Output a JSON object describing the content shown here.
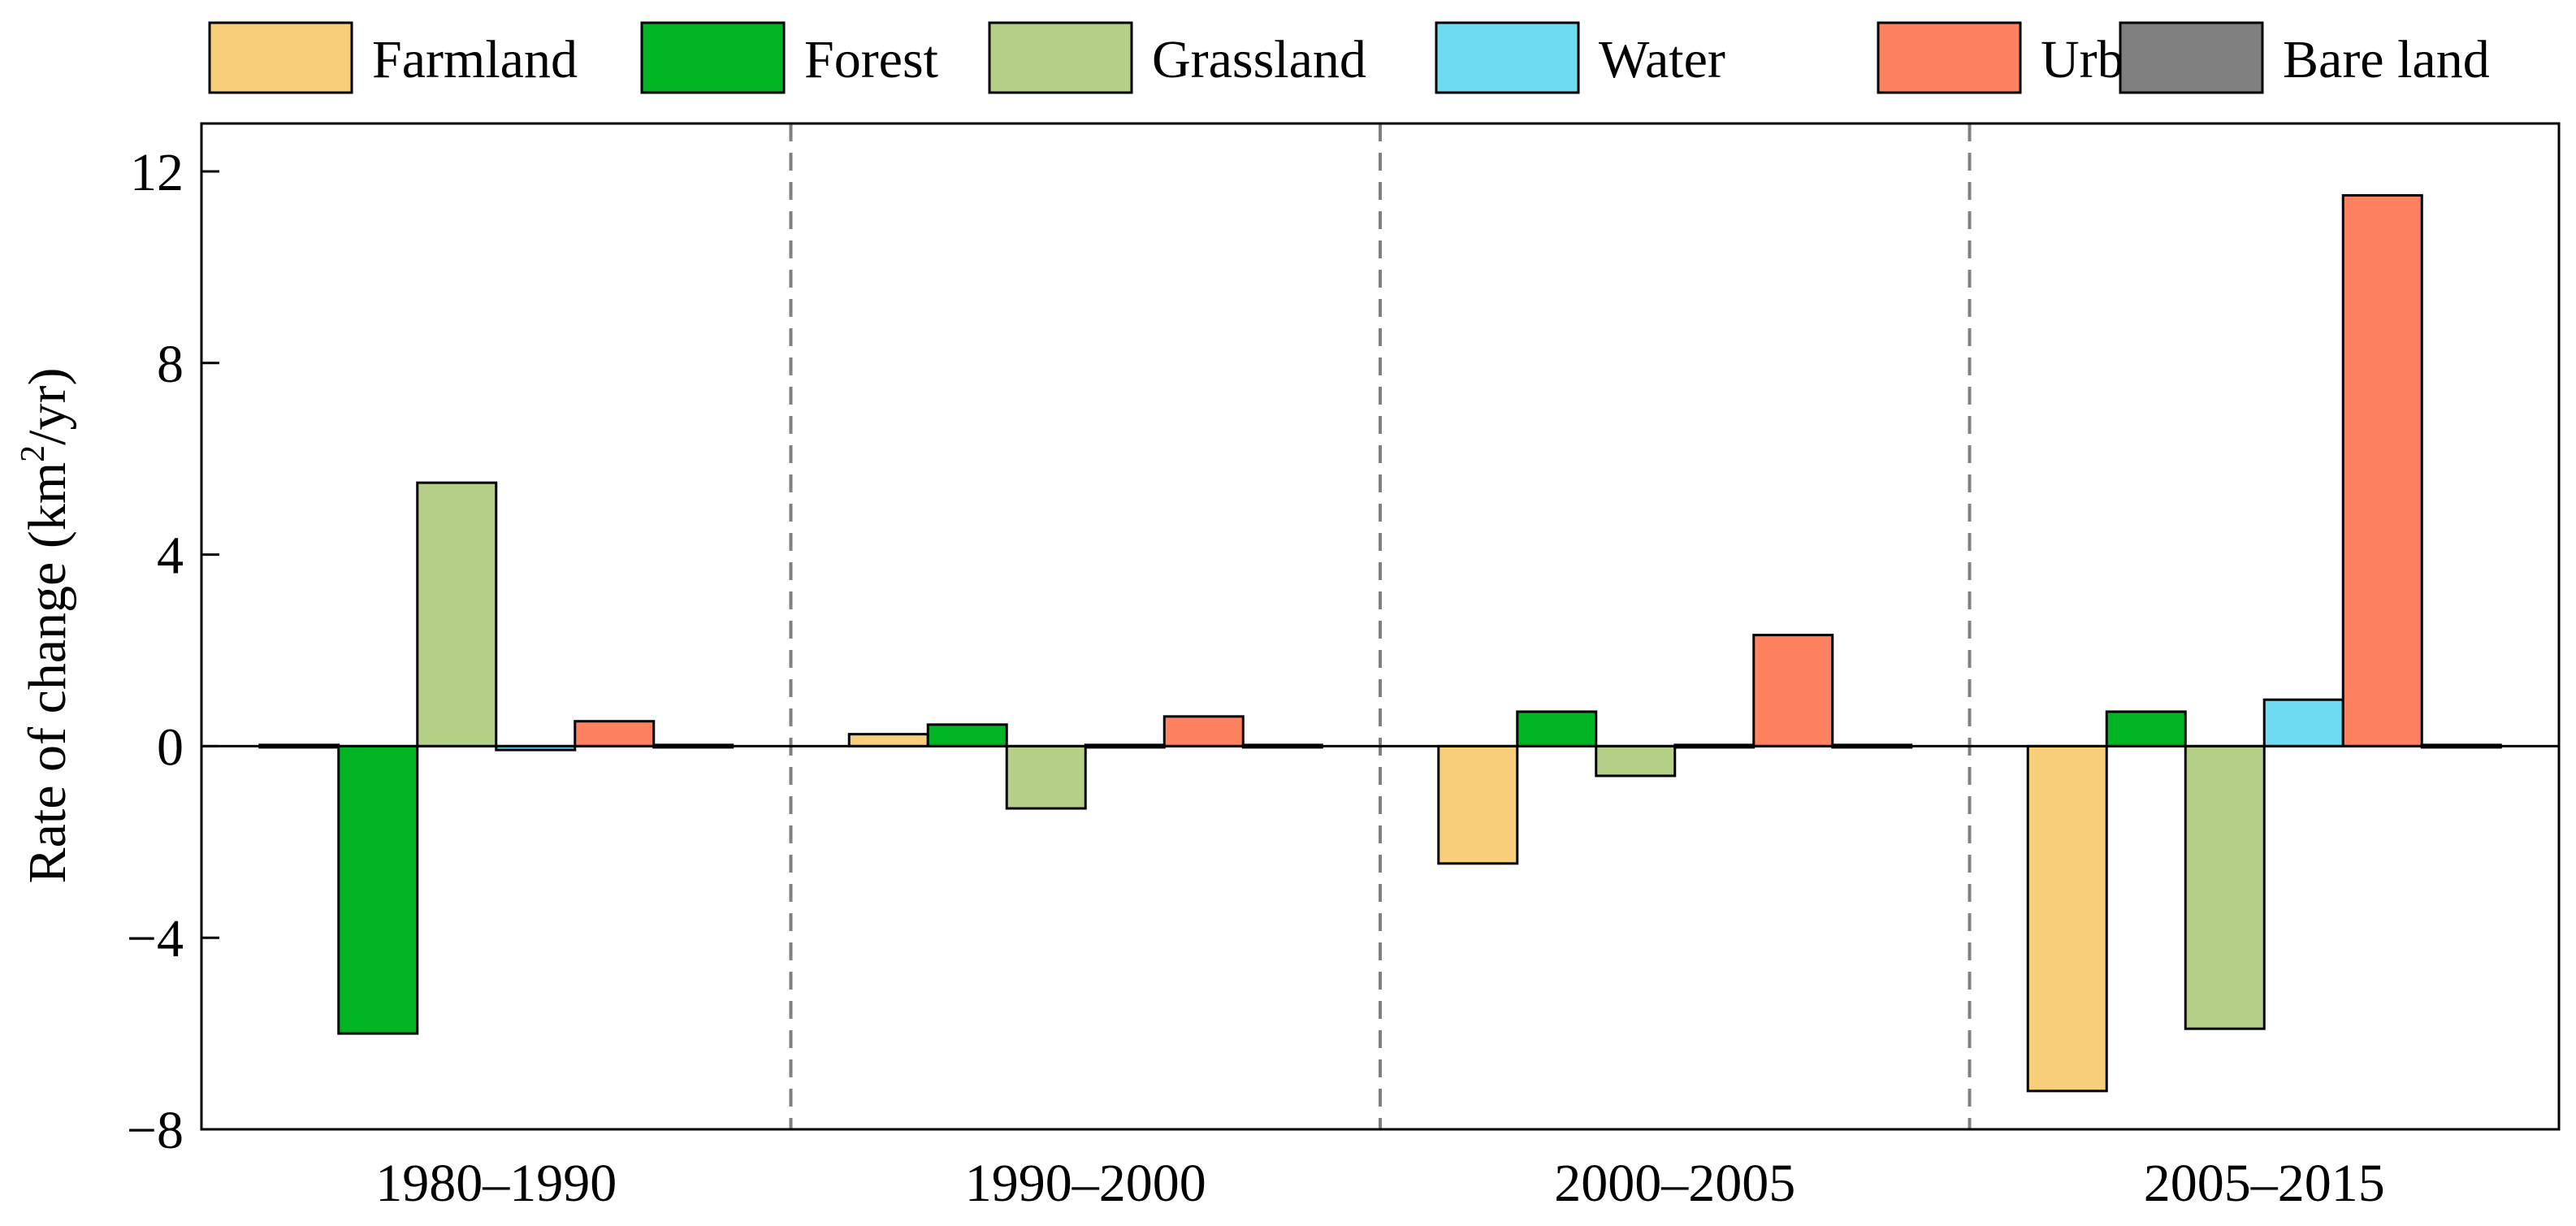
{
  "chart_data": {
    "type": "bar",
    "ylabel": "Rate of change (km²/yr)",
    "ylabel_main": "Rate of change (km",
    "ylabel_sup": "2",
    "ylabel_tail": "/yr)",
    "xlabel": "",
    "ylim": [
      -8,
      13
    ],
    "yticks": [
      -8,
      -4,
      0,
      4,
      8,
      12
    ],
    "ytick_labels": [
      "−8",
      "−4",
      "0",
      "4",
      "8",
      "12"
    ],
    "categories": [
      "1980–1990",
      "1990–2000",
      "2000–2005",
      "2005–2015"
    ],
    "legend_position": "top",
    "series": [
      {
        "name": "Farmland",
        "color": "#F7CF7B",
        "values": [
          0.02,
          0.25,
          -2.45,
          -7.2
        ]
      },
      {
        "name": "Forest",
        "color": "#00B523",
        "values": [
          -6.0,
          0.45,
          0.72,
          0.72
        ]
      },
      {
        "name": "Grassland",
        "color": "#B3D086",
        "values": [
          5.5,
          -1.3,
          -0.62,
          -5.9
        ]
      },
      {
        "name": "Water",
        "color": "#6EDBF2",
        "values": [
          -0.08,
          -0.03,
          0.0,
          0.97
        ]
      },
      {
        "name": "Urban",
        "color": "#FE8160",
        "values": [
          0.52,
          0.62,
          2.32,
          11.5
        ]
      },
      {
        "name": "Bare land",
        "color": "#808080",
        "values": [
          -0.02,
          0.0,
          0.0,
          -0.05
        ]
      }
    ],
    "separator_style": "dashed"
  }
}
